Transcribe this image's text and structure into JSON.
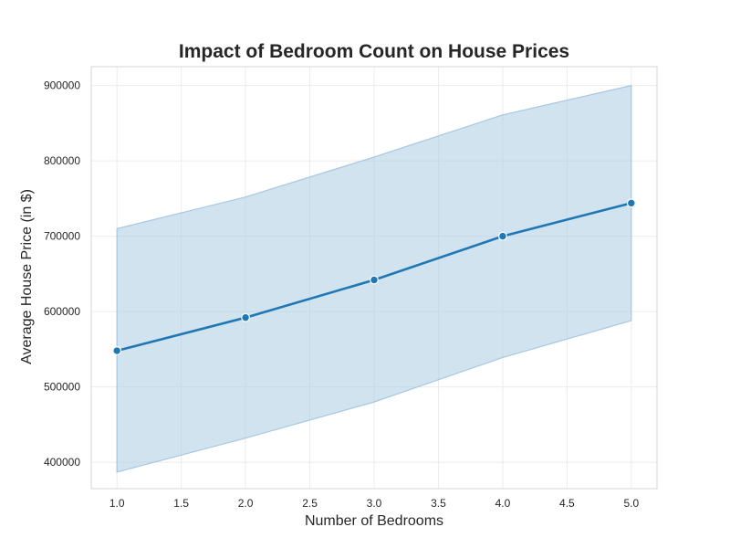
{
  "chart_data": {
    "type": "line",
    "title": "Impact of Bedroom Count on House Prices",
    "xlabel": "Number of Bedrooms",
    "ylabel": "Average House Price (in $)",
    "xlim": [
      0.8,
      5.2
    ],
    "ylim": [
      365000,
      925000
    ],
    "xticks": [
      1.0,
      1.5,
      2.0,
      2.5,
      3.0,
      3.5,
      4.0,
      4.5,
      5.0
    ],
    "xtick_labels": [
      "1.0",
      "1.5",
      "2.0",
      "2.5",
      "3.0",
      "3.5",
      "4.0",
      "4.5",
      "5.0"
    ],
    "yticks": [
      400000,
      500000,
      600000,
      700000,
      800000,
      900000
    ],
    "ytick_labels": [
      "400000",
      "500000",
      "600000",
      "700000",
      "800000",
      "900000"
    ],
    "grid": true,
    "series": [
      {
        "x": [
          1,
          2,
          3,
          4,
          5
        ],
        "y": [
          548000,
          592000,
          642000,
          700000,
          744000
        ],
        "ci_lower": [
          387000,
          432000,
          480000,
          539000,
          588000
        ],
        "ci_upper": [
          710000,
          752000,
          805000,
          861000,
          900000
        ],
        "color": "#1f77b4",
        "band_color": "#a6c8e2"
      }
    ]
  }
}
